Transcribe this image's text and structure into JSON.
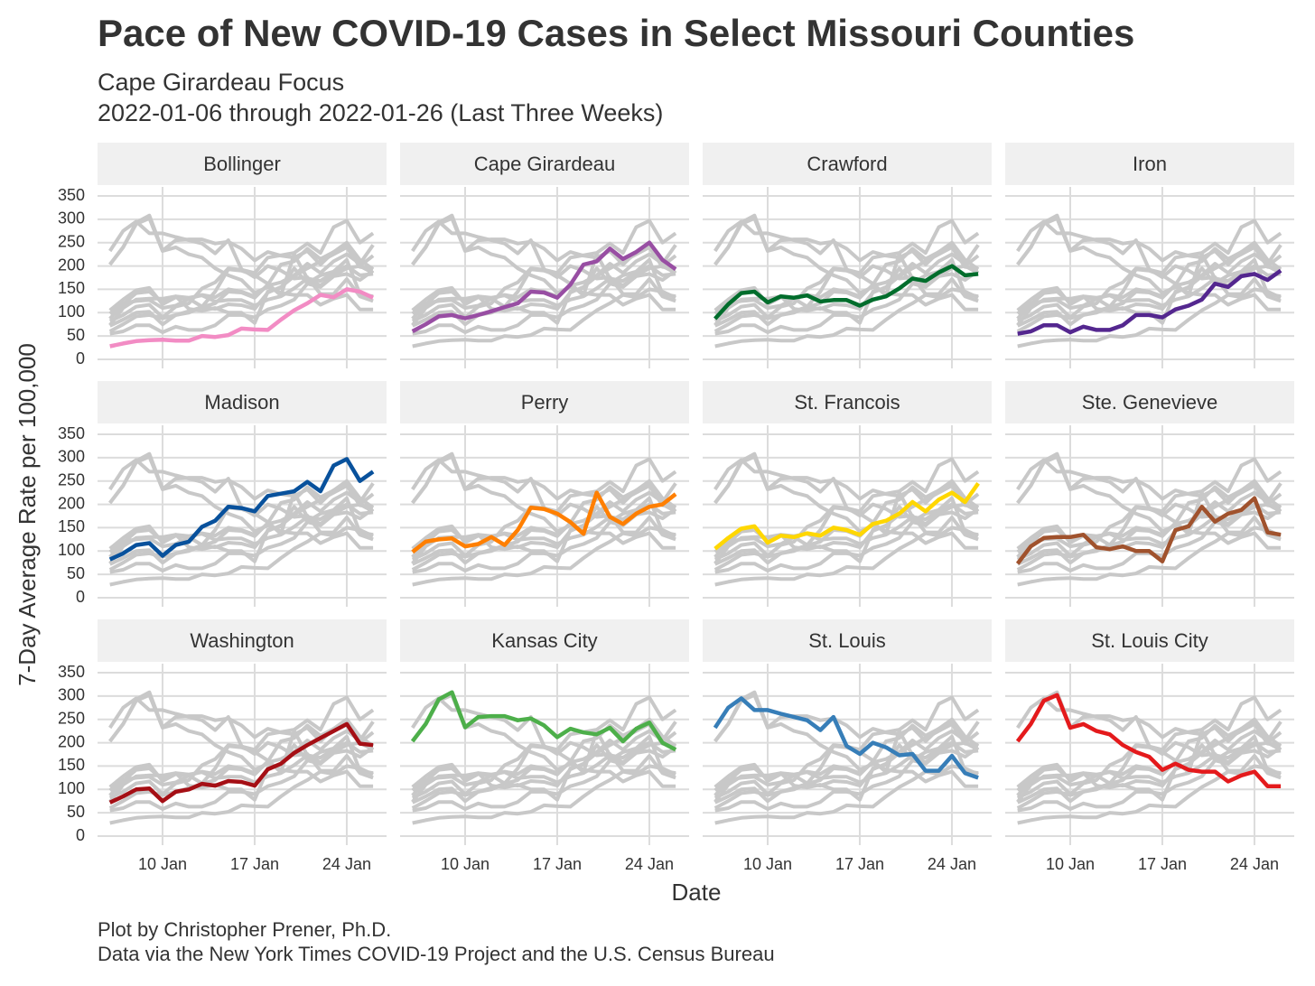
{
  "chart_data": {
    "type": "line",
    "title": "Pace of New COVID-19 Cases in Select Missouri Counties",
    "subtitle": [
      "Cape Girardeau Focus",
      "2022-01-06 through 2022-01-26 (Last Three Weeks)"
    ],
    "xlabel": "Date",
    "ylabel": "7-Day Average Rate per 100,000",
    "caption": [
      "Plot by Christopher Prener, Ph.D.",
      "Data via the New York Times COVID-19 Project and the U.S. Census Bureau"
    ],
    "x": [
      "6 Jan",
      "7 Jan",
      "8 Jan",
      "9 Jan",
      "10 Jan",
      "11 Jan",
      "12 Jan",
      "13 Jan",
      "14 Jan",
      "15 Jan",
      "16 Jan",
      "17 Jan",
      "18 Jan",
      "19 Jan",
      "20 Jan",
      "21 Jan",
      "22 Jan",
      "23 Jan",
      "24 Jan",
      "25 Jan",
      "26 Jan"
    ],
    "xticks": [
      "10 Jan",
      "17 Jan",
      "24 Jan"
    ],
    "ylim": [
      0,
      350
    ],
    "yticks": [
      0,
      50,
      100,
      150,
      200,
      250,
      300,
      350
    ],
    "grid": true,
    "context_color": "#c8c8c8",
    "series": [
      {
        "name": "Bollinger",
        "color": "#f28cc4",
        "values": [
          28,
          34,
          39,
          41,
          42,
          40,
          40,
          50,
          48,
          52,
          66,
          64,
          63,
          85,
          105,
          120,
          138,
          133,
          150,
          145,
          132
        ]
      },
      {
        "name": "Cape Girardeau",
        "color": "#984ea3",
        "values": [
          60,
          75,
          92,
          95,
          88,
          95,
          103,
          112,
          120,
          145,
          143,
          132,
          160,
          203,
          210,
          237,
          215,
          230,
          250,
          213,
          193
        ]
      },
      {
        "name": "Crawford",
        "color": "#006d2c",
        "values": [
          87,
          118,
          142,
          145,
          122,
          135,
          132,
          137,
          124,
          127,
          127,
          115,
          128,
          135,
          152,
          173,
          168,
          186,
          200,
          180,
          183
        ]
      },
      {
        "name": "Iron",
        "color": "#54278f",
        "values": [
          55,
          60,
          73,
          73,
          58,
          70,
          63,
          63,
          73,
          95,
          95,
          90,
          107,
          115,
          128,
          162,
          155,
          178,
          183,
          170,
          190
        ]
      },
      {
        "name": "Madison",
        "color": "#08519c",
        "values": [
          82,
          95,
          113,
          117,
          90,
          113,
          120,
          152,
          165,
          195,
          192,
          185,
          218,
          223,
          228,
          248,
          228,
          283,
          297,
          250,
          270
        ]
      },
      {
        "name": "Perry",
        "color": "#ff7f00",
        "values": [
          98,
          120,
          125,
          127,
          110,
          115,
          130,
          113,
          145,
          193,
          190,
          180,
          162,
          137,
          225,
          173,
          158,
          180,
          195,
          200,
          222
        ]
      },
      {
        "name": "St. Francois",
        "color": "#ffd700",
        "values": [
          105,
          128,
          148,
          153,
          118,
          133,
          130,
          138,
          133,
          150,
          145,
          135,
          158,
          165,
          180,
          205,
          185,
          210,
          225,
          205,
          245
        ]
      },
      {
        "name": "Ste. Genevieve",
        "color": "#a0522d",
        "values": [
          73,
          110,
          128,
          130,
          130,
          135,
          108,
          104,
          110,
          100,
          100,
          78,
          145,
          153,
          195,
          163,
          180,
          188,
          213,
          140,
          135
        ]
      },
      {
        "name": "Washington",
        "color": "#a50f15",
        "values": [
          72,
          85,
          100,
          102,
          75,
          95,
          100,
          112,
          108,
          118,
          116,
          108,
          143,
          155,
          178,
          195,
          210,
          225,
          240,
          198,
          195
        ]
      },
      {
        "name": "Kansas City",
        "color": "#4daf4a",
        "values": [
          203,
          240,
          293,
          308,
          233,
          255,
          257,
          257,
          248,
          252,
          237,
          212,
          230,
          222,
          218,
          232,
          203,
          230,
          243,
          200,
          185
        ]
      },
      {
        "name": "St. Louis",
        "color": "#377eb8",
        "values": [
          232,
          275,
          295,
          270,
          270,
          262,
          255,
          248,
          227,
          255,
          193,
          176,
          200,
          190,
          173,
          176,
          140,
          140,
          172,
          135,
          125
        ]
      },
      {
        "name": "St. Louis City",
        "color": "#e41a1c",
        "values": [
          203,
          240,
          290,
          302,
          232,
          240,
          225,
          218,
          195,
          180,
          170,
          142,
          155,
          142,
          138,
          138,
          117,
          130,
          138,
          107,
          107
        ]
      }
    ]
  }
}
